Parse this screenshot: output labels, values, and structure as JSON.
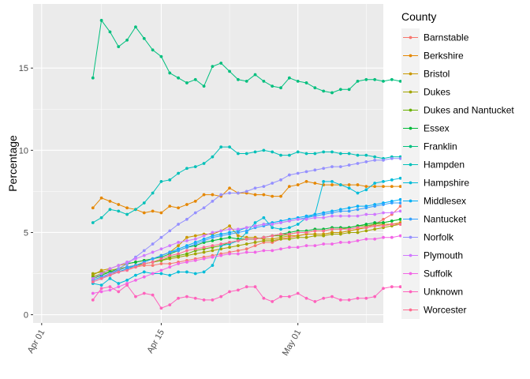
{
  "chart_data": {
    "type": "line",
    "xlabel": "",
    "ylabel": "Percentage",
    "x_start": "2020-04-07",
    "x_end": "2020-05-09",
    "x_ticks": [
      {
        "date": "2020-04-01",
        "label": "Apr 01"
      },
      {
        "date": "2020-04-15",
        "label": "Apr 15"
      },
      {
        "date": "2020-05-01",
        "label": "May 01"
      }
    ],
    "xlim": [
      "2020-03-31",
      "2020-05-11"
    ],
    "y_ticks": [
      0,
      5,
      10,
      15
    ],
    "ylim": [
      -0.5,
      18.9
    ],
    "legend_title": "County",
    "legend_position": "right",
    "series": [
      {
        "name": "Barnstable",
        "color": "#F8766D",
        "values": [
          2.1,
          2.3,
          2.5,
          2.6,
          2.8,
          2.9,
          3.0,
          3.0,
          3.1,
          3.1,
          3.2,
          3.3,
          3.4,
          3.5,
          3.6,
          3.7,
          3.8,
          3.9,
          4.0,
          4.2,
          4.4,
          4.4,
          4.6,
          4.7,
          4.8,
          4.9,
          4.9,
          4.9,
          5.0,
          5.0,
          5.1,
          5.2,
          5.3,
          5.5,
          5.8,
          6.1,
          6.6
        ]
      },
      {
        "name": "Berkshire",
        "color": "#E58700",
        "values": [
          6.5,
          7.1,
          6.9,
          6.7,
          6.5,
          6.4,
          6.2,
          6.3,
          6.2,
          6.6,
          6.5,
          6.7,
          6.9,
          7.3,
          7.3,
          7.2,
          7.7,
          7.4,
          7.4,
          7.3,
          7.3,
          7.2,
          7.2,
          7.8,
          7.9,
          8.1,
          8.0,
          7.9,
          7.9,
          7.9,
          7.9,
          7.9,
          7.8,
          7.8,
          7.8,
          7.8,
          7.8
        ]
      },
      {
        "name": "Bristol",
        "color": "#C99800",
        "values": [
          2.4,
          2.7,
          2.8,
          3.0,
          3.1,
          3.2,
          3.3,
          3.4,
          3.6,
          3.8,
          4.2,
          4.7,
          4.8,
          4.9,
          4.9,
          5.1,
          5.4,
          4.8,
          4.7,
          4.7,
          4.6,
          4.6,
          4.7,
          4.8,
          4.8,
          4.9,
          4.9,
          4.9,
          5.0,
          5.0,
          5.1,
          5.2,
          5.3,
          5.4,
          5.5,
          5.5,
          5.6
        ]
      },
      {
        "name": "Dukes",
        "color": "#A3A500",
        "values": [
          2.5,
          2.6,
          2.7,
          2.8,
          2.9,
          3.0,
          3.1,
          3.2,
          3.3,
          3.4,
          3.5,
          3.6,
          3.7,
          3.8,
          3.9,
          4.0,
          4.1,
          4.2,
          4.3,
          4.4,
          4.5,
          4.5,
          4.6,
          4.6,
          4.7,
          4.7,
          4.8,
          4.8,
          4.9,
          4.9,
          5.0,
          5.0,
          5.1,
          5.2,
          5.3,
          5.4,
          5.5
        ]
      },
      {
        "name": "Dukes and Nantucket",
        "color": "#6BB100",
        "values": [
          2.3,
          2.5,
          2.6,
          2.7,
          2.9,
          3.0,
          3.1,
          3.2,
          3.3,
          3.5,
          3.6,
          3.7,
          3.9,
          4.0,
          4.1,
          4.2,
          4.4,
          4.5,
          4.6,
          4.6,
          4.7,
          4.8,
          4.8,
          4.9,
          5.0,
          5.0,
          5.1,
          5.1,
          5.2,
          5.2,
          5.3,
          5.4,
          5.4,
          5.5,
          5.6,
          5.7,
          5.8
        ]
      },
      {
        "name": "Essex",
        "color": "#00BA38",
        "values": [
          2.2,
          2.4,
          2.6,
          2.8,
          3.1,
          3.2,
          3.3,
          3.4,
          3.5,
          3.7,
          3.9,
          4.1,
          4.2,
          4.4,
          4.5,
          4.6,
          4.7,
          4.6,
          4.6,
          4.6,
          4.7,
          4.8,
          4.9,
          5.0,
          5.1,
          5.1,
          5.2,
          5.2,
          5.3,
          5.3,
          5.3,
          5.4,
          5.5,
          5.6,
          5.6,
          5.7,
          5.8
        ]
      },
      {
        "name": "Franklin",
        "color": "#00BF7D",
        "values": [
          14.4,
          17.9,
          17.2,
          16.3,
          16.7,
          17.5,
          16.8,
          16.1,
          15.7,
          14.7,
          14.4,
          14.1,
          14.3,
          13.9,
          15.1,
          15.3,
          14.8,
          14.3,
          14.2,
          14.6,
          14.2,
          13.9,
          13.8,
          14.4,
          14.2,
          14.1,
          13.8,
          13.6,
          13.5,
          13.7,
          13.7,
          14.2,
          14.3,
          14.3,
          14.2,
          14.3,
          14.2
        ]
      },
      {
        "name": "Hampden",
        "color": "#00C0B8",
        "values": [
          5.6,
          5.9,
          6.4,
          6.3,
          6.1,
          6.4,
          6.8,
          7.4,
          8.1,
          8.2,
          8.6,
          8.9,
          9.0,
          9.2,
          9.6,
          10.2,
          10.2,
          9.8,
          9.8,
          9.9,
          10.0,
          9.9,
          9.7,
          9.7,
          9.9,
          9.8,
          9.8,
          9.9,
          9.9,
          9.8,
          9.8,
          9.7,
          9.7,
          9.6,
          9.5,
          9.6,
          9.6
        ]
      },
      {
        "name": "Hampshire",
        "color": "#00BCD8",
        "values": [
          1.9,
          1.8,
          2.2,
          1.9,
          2.1,
          2.4,
          2.6,
          2.5,
          2.5,
          2.4,
          2.6,
          2.6,
          2.5,
          2.6,
          3.0,
          4.2,
          4.3,
          4.5,
          5.0,
          5.6,
          5.9,
          5.3,
          5.2,
          5.3,
          5.5,
          5.9,
          6.1,
          8.1,
          8.1,
          7.9,
          7.7,
          7.4,
          7.6,
          8.0,
          8.1,
          8.2,
          8.3
        ]
      },
      {
        "name": "Middlesex",
        "color": "#00B0F6",
        "values": [
          2.0,
          2.2,
          2.4,
          2.6,
          2.8,
          3.0,
          3.2,
          3.4,
          3.6,
          3.8,
          4.0,
          4.2,
          4.4,
          4.6,
          4.8,
          4.9,
          5.0,
          5.1,
          5.3,
          5.4,
          5.5,
          5.6,
          5.7,
          5.8,
          5.9,
          6.0,
          6.1,
          6.2,
          6.3,
          6.4,
          6.5,
          6.6,
          6.6,
          6.7,
          6.8,
          6.9,
          7.0
        ]
      },
      {
        "name": "Nantucket",
        "color": "#35A2FF",
        "values": [
          2.1,
          2.3,
          2.5,
          2.7,
          2.9,
          3.0,
          3.2,
          3.4,
          3.6,
          3.8,
          3.9,
          4.1,
          4.3,
          4.5,
          4.7,
          4.8,
          4.9,
          5.0,
          5.1,
          5.3,
          5.4,
          5.5,
          5.6,
          5.7,
          5.8,
          5.9,
          6.0,
          6.1,
          6.2,
          6.3,
          6.3,
          6.4,
          6.5,
          6.6,
          6.7,
          6.8,
          6.8
        ]
      },
      {
        "name": "Norfolk",
        "color": "#9590FF",
        "values": [
          2.0,
          2.2,
          2.5,
          2.8,
          3.1,
          3.5,
          3.9,
          4.3,
          4.7,
          5.1,
          5.5,
          5.8,
          6.2,
          6.5,
          6.9,
          7.3,
          7.4,
          7.4,
          7.5,
          7.7,
          7.8,
          8.0,
          8.2,
          8.5,
          8.6,
          8.7,
          8.8,
          8.9,
          9.0,
          9.0,
          9.1,
          9.2,
          9.3,
          9.4,
          9.4,
          9.5,
          9.5
        ]
      },
      {
        "name": "Plymouth",
        "color": "#D078FF",
        "values": [
          2.2,
          2.5,
          2.8,
          3.0,
          3.2,
          3.4,
          3.6,
          3.8,
          4.0,
          4.2,
          4.4,
          4.5,
          4.6,
          4.8,
          5.0,
          5.1,
          5.2,
          5.2,
          5.3,
          5.4,
          5.5,
          5.5,
          5.6,
          5.7,
          5.8,
          5.8,
          5.9,
          5.9,
          6.0,
          6.0,
          6.0,
          6.0,
          6.1,
          6.1,
          6.2,
          6.2,
          6.3
        ]
      },
      {
        "name": "Suffolk",
        "color": "#F265E7",
        "values": [
          1.3,
          1.4,
          1.5,
          1.7,
          1.9,
          2.1,
          2.3,
          2.5,
          2.7,
          2.9,
          3.1,
          3.2,
          3.3,
          3.4,
          3.5,
          3.6,
          3.7,
          3.7,
          3.8,
          3.8,
          3.9,
          3.9,
          4.0,
          4.1,
          4.1,
          4.2,
          4.2,
          4.3,
          4.3,
          4.4,
          4.4,
          4.5,
          4.6,
          4.6,
          4.7,
          4.7,
          4.8
        ]
      },
      {
        "name": "Unknown",
        "color": "#FF62BC",
        "values": [
          0.9,
          1.6,
          1.7,
          1.4,
          1.8,
          1.1,
          1.3,
          1.2,
          0.4,
          0.6,
          1.0,
          1.1,
          1.0,
          0.9,
          0.9,
          1.1,
          1.4,
          1.5,
          1.7,
          1.7,
          1.0,
          0.8,
          1.1,
          1.1,
          1.3,
          1.0,
          0.8,
          1.0,
          1.1,
          0.9,
          0.9,
          1.0,
          1.0,
          1.1,
          1.6,
          1.7,
          1.7
        ]
      },
      {
        "name": "Worcester",
        "color": "#FF6C91",
        "values": [
          2.0,
          2.2,
          2.4,
          2.6,
          2.7,
          2.9,
          3.1,
          3.2,
          3.4,
          3.6,
          3.7,
          3.9,
          4.0,
          4.1,
          4.2,
          4.3,
          4.4,
          4.5,
          4.6,
          4.6,
          4.7,
          4.8,
          4.9,
          4.9,
          5.0,
          5.0,
          5.1,
          5.1,
          5.2,
          5.2,
          5.2,
          5.3,
          5.3,
          5.4,
          5.4,
          5.5,
          5.5
        ]
      }
    ]
  }
}
